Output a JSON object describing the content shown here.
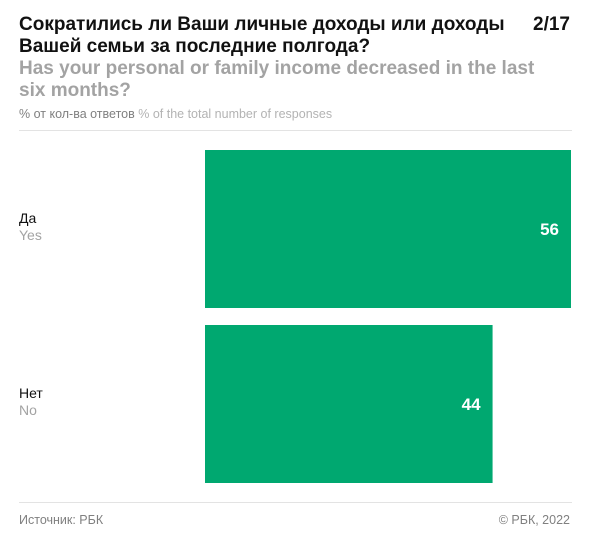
{
  "header": {
    "title_ru": "Сократились ли Ваши личные доходы или доходы Вашей семьи за последние полгода?",
    "title_en": "Has your personal or family income decreased in the last six months?",
    "page_number": "2/17",
    "units_ru": "% от кол-ва ответов",
    "units_en": "% of the total number of responses"
  },
  "chart_data": {
    "type": "bar",
    "orientation": "horizontal",
    "categories": [
      "Да",
      "Нет"
    ],
    "categories_en": [
      "Yes",
      "No"
    ],
    "values": [
      56,
      44
    ],
    "xlim": [
      0,
      56
    ],
    "bar_color": "#00a870",
    "value_label_color": "#ffffff",
    "grid": false,
    "legend": "none"
  },
  "footer": {
    "source": "Источник: РБК",
    "copyright": "© РБК, 2022"
  }
}
